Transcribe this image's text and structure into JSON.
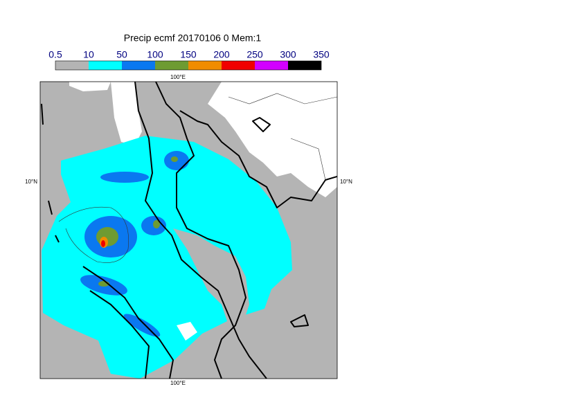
{
  "title": "Precip ecmf 20170106 0 Mem:1",
  "legend": {
    "labels": [
      "0.5",
      "10",
      "50",
      "100",
      "150",
      "200",
      "250",
      "300",
      "350"
    ],
    "colors": [
      "#b4b4b4",
      "#00ffff",
      "#0a78f0",
      "#6e9b32",
      "#f08c00",
      "#f00000",
      "#d200ff",
      "#000000"
    ]
  },
  "map": {
    "lon_label": "100°E",
    "lat_label": "10°N"
  }
}
